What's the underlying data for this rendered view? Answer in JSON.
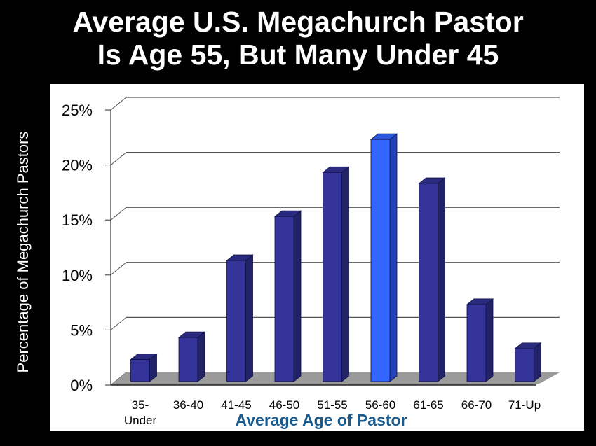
{
  "title": {
    "line1": "Average U.S. Megachurch Pastor",
    "line2": "Is Age 55, But Many Under 45"
  },
  "colors": {
    "background": "#000000",
    "panel": "#ffffff",
    "bar_front": "#333399",
    "bar_side": "#222266",
    "bar_top": "#2a2a80",
    "highlight_front": "#3366ff",
    "highlight_side": "#2244bb",
    "highlight_top": "#2a55dd",
    "floor": "#9a9a9a",
    "xlabel": "#1b5a8c"
  },
  "chart_data": {
    "type": "bar",
    "style": "3d-column",
    "title": "Average U.S. Megachurch Pastor Is Age 55, But Many Under 45",
    "xlabel": "Average Age of Pastor",
    "ylabel": "Percentage of Megachurch Pastors",
    "categories": [
      "35-Under",
      "36-40",
      "41-45",
      "46-50",
      "51-55",
      "56-60",
      "61-65",
      "66-70",
      "71-Up"
    ],
    "category_labels": [
      [
        "35-",
        "Under"
      ],
      [
        "36-40"
      ],
      [
        "41-45"
      ],
      [
        "46-50"
      ],
      [
        "51-55"
      ],
      [
        "56-60"
      ],
      [
        "61-65"
      ],
      [
        "66-70"
      ],
      [
        "71-Up"
      ]
    ],
    "values": [
      2,
      4,
      11,
      15,
      19,
      22,
      18,
      7,
      3
    ],
    "unit": "%",
    "highlight_index": 5,
    "ylim": [
      0,
      25
    ],
    "yticks": [
      0,
      5,
      10,
      15,
      20,
      25
    ],
    "ytick_labels": [
      "0%",
      "5%",
      "10%",
      "15%",
      "20%",
      "25%"
    ],
    "grid": true,
    "legend": null
  }
}
